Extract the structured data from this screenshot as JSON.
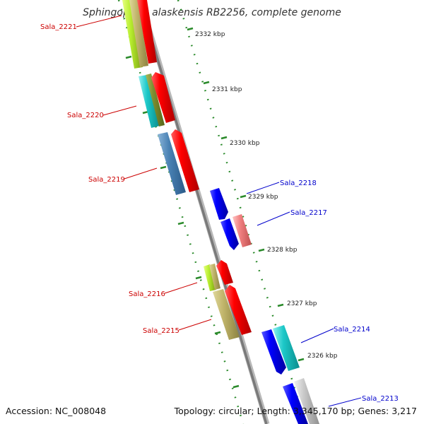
{
  "title": "Sphingopyxis alaskensis RB2256, complete genome",
  "accession": "Accession: NC_008048",
  "summary": "Topology: circular; Length: 3,345,170 bp; Genes: 3,217",
  "colors": {
    "backbone": "#8a8a8a",
    "tick": "#2a8a2a",
    "reverse_label": "#cc0000",
    "forward_label": "#0000cc"
  },
  "kbp_ticks": [
    "2332 kbp",
    "2331 kbp",
    "2330 kbp",
    "2329 kbp",
    "2328 kbp",
    "2327 kbp",
    "2326 kbp"
  ],
  "gene_labels": [
    {
      "text": "Sala_2221",
      "strand": "reverse"
    },
    {
      "text": "Sala_2220",
      "strand": "reverse"
    },
    {
      "text": "Sala_2219",
      "strand": "reverse"
    },
    {
      "text": "Sala_2218",
      "strand": "forward"
    },
    {
      "text": "Sala_2217",
      "strand": "forward"
    },
    {
      "text": "Sala_2216",
      "strand": "reverse"
    },
    {
      "text": "Sala_2215",
      "strand": "reverse"
    },
    {
      "text": "Sala_2214",
      "strand": "forward"
    },
    {
      "text": "Sala_2213",
      "strand": "forward"
    }
  ]
}
